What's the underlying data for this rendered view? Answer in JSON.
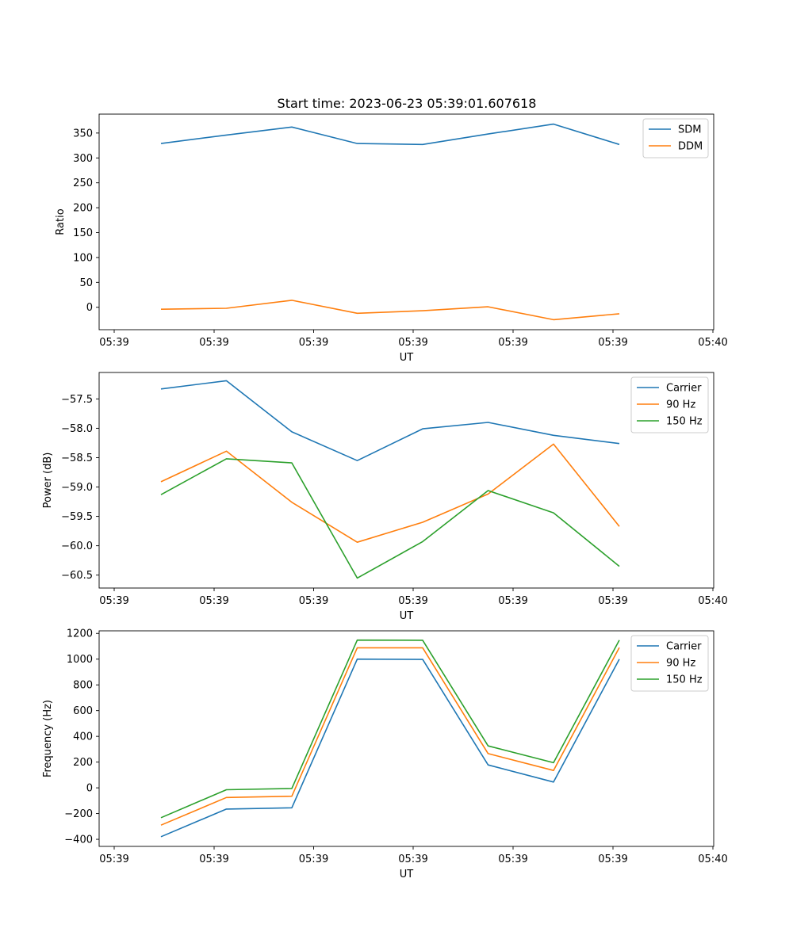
{
  "figure_title": "Start time: 2023-06-23 05:39:01.607618",
  "chart_data": [
    {
      "type": "line",
      "title": "Start time: 2023-06-23 05:39:01.607618",
      "xlabel": "UT",
      "ylabel": "Ratio",
      "x_tick_labels": [
        "05:39",
        "05:39",
        "05:39",
        "05:39",
        "05:39",
        "05:39",
        "05:40"
      ],
      "y_ticks": [
        0,
        50,
        100,
        150,
        200,
        250,
        300,
        350
      ],
      "y_tick_labels": [
        "0",
        "50",
        "100",
        "150",
        "200",
        "250",
        "300",
        "350"
      ],
      "ylim": [
        -45,
        388
      ],
      "grid": false,
      "legend_position": "top-right",
      "series": [
        {
          "name": "SDM",
          "color": "#1f77b4",
          "values": [
            329,
            346,
            362,
            329,
            327,
            348,
            368,
            327
          ]
        },
        {
          "name": "DDM",
          "color": "#ff7f0e",
          "values": [
            -4,
            -2,
            14,
            -12,
            -7,
            1,
            -25,
            -13
          ]
        }
      ]
    },
    {
      "type": "line",
      "xlabel": "UT",
      "ylabel": "Power (dB)",
      "x_tick_labels": [
        "05:39",
        "05:39",
        "05:39",
        "05:39",
        "05:39",
        "05:39",
        "05:40"
      ],
      "y_ticks": [
        -57.5,
        -58.0,
        -58.5,
        -59.0,
        -59.5,
        -60.0,
        -60.5
      ],
      "y_tick_labels": [
        "−57.5",
        "−58.0",
        "−58.5",
        "−59.0",
        "−59.5",
        "−60.0",
        "−60.5"
      ],
      "ylim": [
        -60.72,
        -57.05
      ],
      "grid": false,
      "legend_position": "top-right",
      "series": [
        {
          "name": "Carrier",
          "color": "#1f77b4",
          "values": [
            -57.33,
            -57.19,
            -58.06,
            -58.55,
            -58.01,
            -57.9,
            -58.12,
            -58.26
          ]
        },
        {
          "name": "90 Hz",
          "color": "#ff7f0e",
          "values": [
            -58.91,
            -58.39,
            -59.26,
            -59.94,
            -59.6,
            -59.12,
            -58.27,
            -59.67
          ]
        },
        {
          "name": "150 Hz",
          "color": "#2ca02c",
          "values": [
            -59.13,
            -58.52,
            -58.59,
            -60.55,
            -59.93,
            -59.06,
            -59.44,
            -60.35
          ]
        }
      ]
    },
    {
      "type": "line",
      "xlabel": "UT",
      "ylabel": "Frequency (Hz)",
      "x_tick_labels": [
        "05:39",
        "05:39",
        "05:39",
        "05:39",
        "05:39",
        "05:39",
        "05:40"
      ],
      "y_ticks": [
        -400,
        -200,
        0,
        200,
        400,
        600,
        800,
        1000,
        1200
      ],
      "y_tick_labels": [
        "−400",
        "−200",
        "0",
        "200",
        "400",
        "600",
        "800",
        "1000",
        "1200"
      ],
      "ylim": [
        -455,
        1220
      ],
      "grid": false,
      "legend_position": "top-right",
      "series": [
        {
          "name": "Carrier",
          "color": "#1f77b4",
          "values": [
            -380,
            -165,
            -155,
            1000,
            998,
            178,
            45,
            1000
          ]
        },
        {
          "name": "90 Hz",
          "color": "#ff7f0e",
          "values": [
            -290,
            -75,
            -65,
            1088,
            1088,
            266,
            135,
            1090
          ]
        },
        {
          "name": "150 Hz",
          "color": "#2ca02c",
          "values": [
            -232,
            -15,
            -5,
            1148,
            1147,
            326,
            195,
            1148
          ]
        }
      ]
    }
  ]
}
